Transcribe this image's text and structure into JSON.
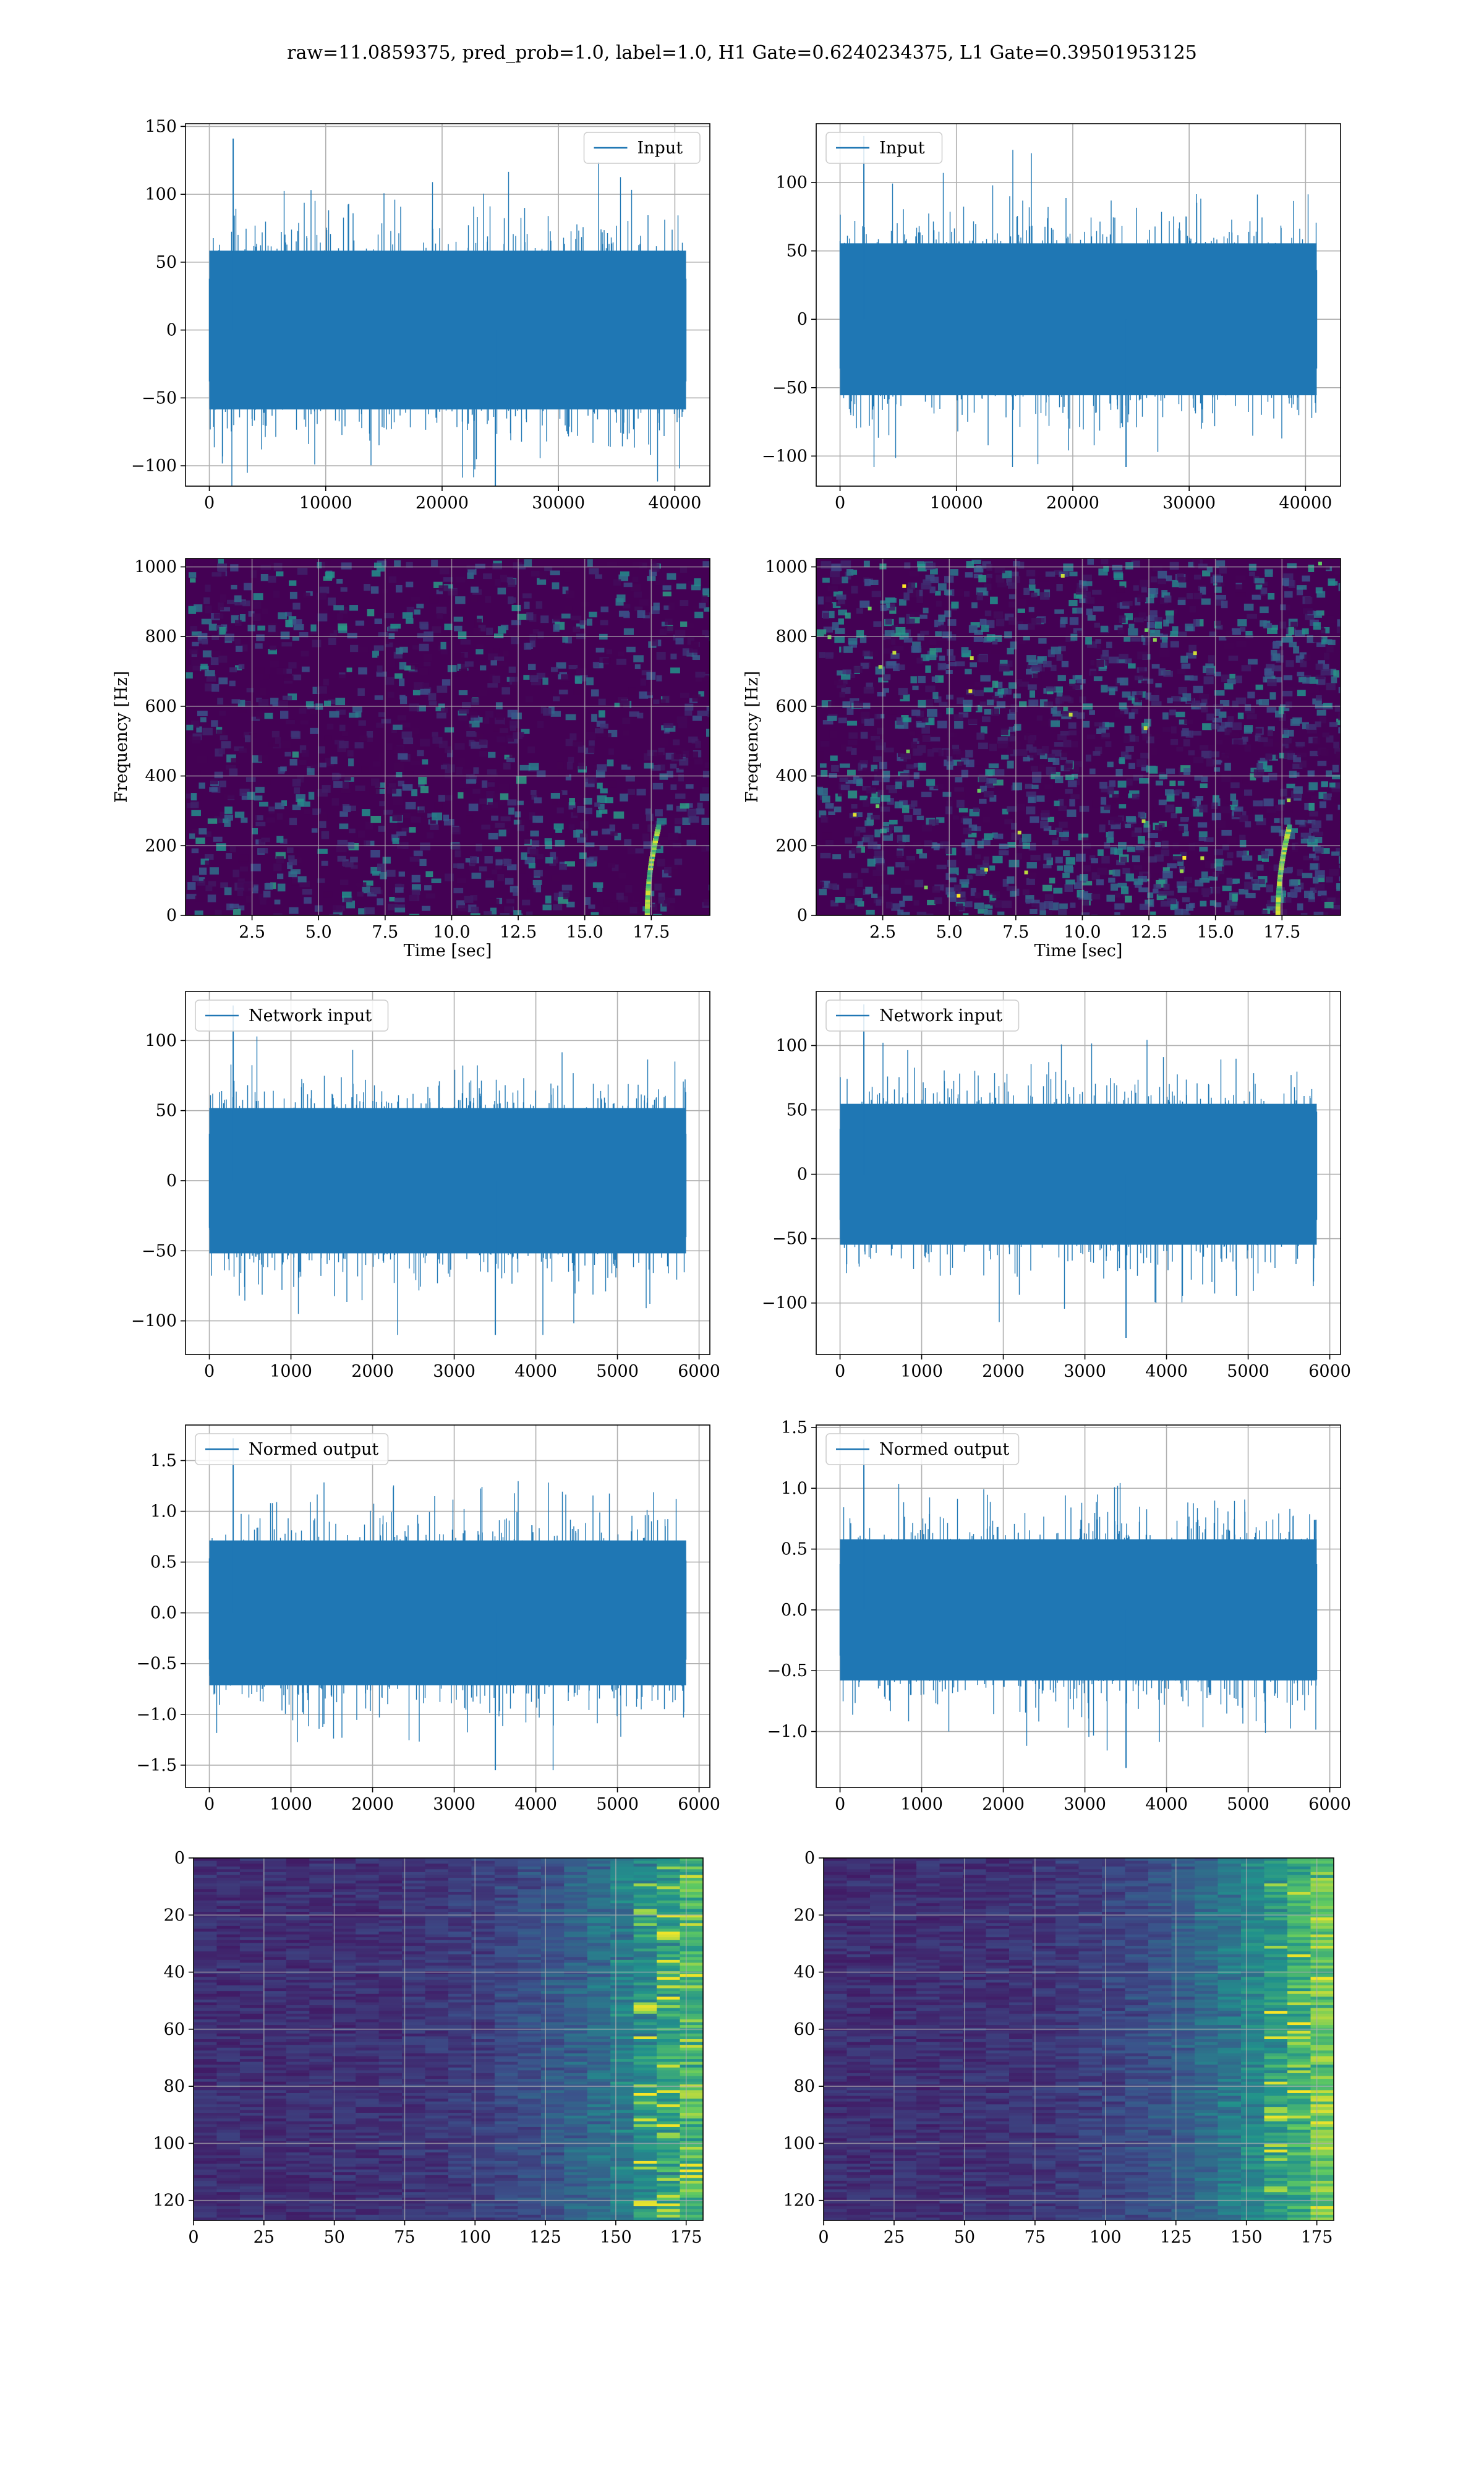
{
  "figure": {
    "title": "raw=11.0859375, pred_prob=1.0, label=1.0, H1 Gate=0.6240234375, L1 Gate=0.39501953125",
    "colors": {
      "line": "#1f77b4",
      "grid": "#b0b0b0",
      "viridis_dark": "#440154",
      "viridis_mid": "#21918c",
      "viridis_bright": "#fde725"
    }
  },
  "chart_data": [
    {
      "type": "line",
      "legend": "Input",
      "legend_loc": "upper right",
      "xlim": [
        -2048,
        43008
      ],
      "ylim": [
        -115,
        152
      ],
      "grid": true,
      "xticks": [
        0,
        10000,
        20000,
        30000,
        40000
      ],
      "yticks": [
        -100,
        -50,
        0,
        50,
        100,
        150
      ],
      "series": [
        {
          "name": "Input",
          "x_range": [
            0,
            40960
          ],
          "envelope": [
            -115,
            141
          ]
        }
      ]
    },
    {
      "type": "line",
      "legend": "Input",
      "legend_loc": "upper left",
      "xlim": [
        -2048,
        43008
      ],
      "ylim": [
        -122,
        143
      ],
      "grid": true,
      "xticks": [
        0,
        10000,
        20000,
        30000,
        40000
      ],
      "yticks": [
        -100,
        -50,
        0,
        50,
        100
      ],
      "series": [
        {
          "name": "Input",
          "x_range": [
            0,
            40960
          ],
          "envelope": [
            -108,
            134
          ]
        }
      ]
    },
    {
      "type": "heatmap",
      "xlabel": "Time [sec]",
      "ylabel": "Frequency [Hz]",
      "xlim": [
        0,
        19.7
      ],
      "ylim": [
        0,
        1024
      ],
      "grid": true,
      "xticks": [
        2.5,
        5.0,
        7.5,
        10.0,
        12.5,
        15.0,
        17.5
      ],
      "yticks": [
        0,
        200,
        400,
        600,
        800,
        1000
      ],
      "colormap": "viridis",
      "annotations": [
        "chirp track near 17.5 s, 0-250 Hz"
      ]
    },
    {
      "type": "heatmap",
      "xlabel": "Time [sec]",
      "ylabel": "Frequency [Hz]",
      "xlim": [
        0,
        19.7
      ],
      "ylim": [
        0,
        1024
      ],
      "grid": true,
      "xticks": [
        2.5,
        5.0,
        7.5,
        10.0,
        12.5,
        15.0,
        17.5
      ],
      "yticks": [
        0,
        200,
        400,
        600,
        800,
        1000
      ],
      "colormap": "viridis",
      "annotations": [
        "chirp track near 17.5 s, 0-250 Hz"
      ]
    },
    {
      "type": "line",
      "legend": "Network input",
      "legend_loc": "upper left",
      "xlim": [
        -292,
        6132
      ],
      "ylim": [
        -124,
        135
      ],
      "grid": true,
      "xticks": [
        0,
        1000,
        2000,
        3000,
        4000,
        5000,
        6000
      ],
      "yticks": [
        -100,
        -50,
        0,
        50,
        100
      ],
      "series": [
        {
          "name": "Network input",
          "x_range": [
            0,
            5840
          ],
          "envelope": [
            -110,
            125
          ]
        }
      ]
    },
    {
      "type": "line",
      "legend": "Network input",
      "legend_loc": "upper left",
      "xlim": [
        -292,
        6132
      ],
      "ylim": [
        -140,
        142
      ],
      "grid": true,
      "xticks": [
        0,
        1000,
        2000,
        3000,
        4000,
        5000,
        6000
      ],
      "yticks": [
        -100,
        -50,
        0,
        50,
        100
      ],
      "series": [
        {
          "name": "Network input",
          "x_range": [
            0,
            5840
          ],
          "envelope": [
            -127,
            132
          ]
        }
      ]
    },
    {
      "type": "line",
      "legend": "Normed output",
      "legend_loc": "upper left",
      "xlim": [
        -292,
        6132
      ],
      "ylim": [
        -1.72,
        1.85
      ],
      "grid": true,
      "xticks": [
        0,
        1000,
        2000,
        3000,
        4000,
        5000,
        6000
      ],
      "yticks": [
        -1.5,
        -1.0,
        -0.5,
        0.0,
        0.5,
        1.0,
        1.5
      ],
      "series": [
        {
          "name": "Normed output",
          "x_range": [
            0,
            5840
          ],
          "envelope": [
            -1.55,
            1.72
          ]
        }
      ]
    },
    {
      "type": "line",
      "legend": "Normed output",
      "legend_loc": "upper left",
      "xlim": [
        -292,
        6132
      ],
      "ylim": [
        -1.46,
        1.52
      ],
      "grid": true,
      "xticks": [
        0,
        1000,
        2000,
        3000,
        4000,
        5000,
        6000
      ],
      "yticks": [
        -1.0,
        -0.5,
        0.0,
        0.5,
        1.0,
        1.5
      ],
      "series": [
        {
          "name": "Normed output",
          "x_range": [
            0,
            5840
          ],
          "envelope": [
            -1.3,
            1.4
          ]
        }
      ]
    },
    {
      "type": "heatmap",
      "xlim": [
        0,
        181
      ],
      "ylim": [
        127,
        0
      ],
      "grid": true,
      "xticks": [
        0,
        25,
        50,
        75,
        100,
        125,
        150,
        175
      ],
      "yticks": [
        0,
        20,
        40,
        60,
        80,
        100,
        120
      ],
      "colormap": "viridis",
      "annotations": [
        "bright activations at columns 150-180"
      ]
    },
    {
      "type": "heatmap",
      "xlim": [
        0,
        181
      ],
      "ylim": [
        127,
        0
      ],
      "grid": true,
      "xticks": [
        0,
        25,
        50,
        75,
        100,
        125,
        150,
        175
      ],
      "yticks": [
        0,
        20,
        40,
        60,
        80,
        100,
        120
      ],
      "colormap": "viridis",
      "annotations": [
        "bright activations at columns 135-180"
      ]
    }
  ]
}
